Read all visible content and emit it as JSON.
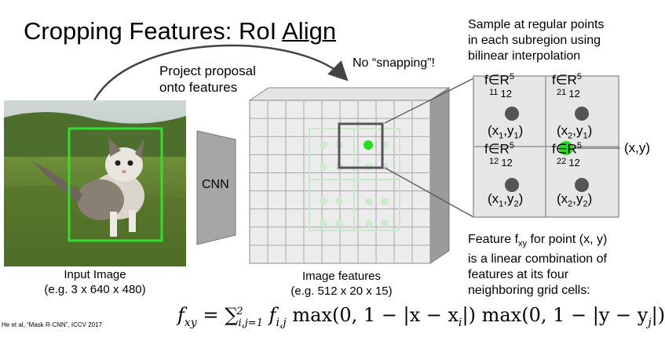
{
  "title": {
    "prefix": "Cropping Features: RoI ",
    "underlined": "Align"
  },
  "project_label": {
    "line1": "Project proposal",
    "line2": "onto features"
  },
  "no_snapping": "No “snapping”!",
  "cnn_label": "CNN",
  "input_image": {
    "line1": "Input Image",
    "line2": "(e.g. 3 x 640 x 480)"
  },
  "features_caption": {
    "line1": "Image features",
    "line2": "(e.g. 512 x 20 x 15)"
  },
  "sample_text": {
    "line1": "Sample at regular points",
    "line2": "in each subregion using",
    "line3": "bilinear interpolation"
  },
  "grid_cells": {
    "f11": {
      "f": "f",
      "sub": "11",
      "sub2": "12",
      "elem": "∈R",
      "sup": "5"
    },
    "f21": {
      "f": "f",
      "sub": "21",
      "sub2": "12",
      "elem": "∈R",
      "sup": "5"
    },
    "f12": {
      "f": "f",
      "sub": "12",
      "sub2": "12",
      "elem": "∈R",
      "sup": "5"
    },
    "f22": {
      "f": "f",
      "sub": "22",
      "sub2": "12",
      "elem": "∈R",
      "sup": "5"
    },
    "p11": {
      "open": "(x",
      "s1": "1",
      "mid": ",y",
      "s2": "1",
      "close": ")"
    },
    "p21": {
      "open": "(x",
      "s1": "2",
      "mid": ",y",
      "s2": "1",
      "close": ")"
    },
    "p12": {
      "open": "(x",
      "s1": "1",
      "mid": ",y",
      "s2": "2",
      "close": ")"
    },
    "p22": {
      "open": "(x",
      "s1": "2",
      "mid": ",y",
      "s2": "2",
      "close": ")"
    }
  },
  "xy_label": "(x,y)",
  "feature_text": {
    "l1a": "Feature f",
    "l1sub": "xy",
    "l1b": " for point (x, y)",
    "line2": "is a linear combination of",
    "line3": "features at its four",
    "line4": "neighboring grid cells:"
  },
  "formula": {
    "lhs": "f",
    "lhs_sub": "xy",
    "eq": " = ∑",
    "sum_sub": "i,j=1",
    "sum_sup": "2",
    "body": " f",
    "body_sub": "i,j",
    "rest": " max(0, 1 − |x − x",
    "x_sub": "i",
    "rest2": "|) max(0, 1 − |y − y",
    "y_sub": "j",
    "rest3": "|)"
  },
  "citation": "He et al, “Mask R-CNN”, ICCV 2017",
  "colors": {
    "green_point": "#22dd22",
    "proposal_box": "#33dd33",
    "dark_point": "#555555",
    "grid_fill": "#e6e6e6",
    "grid_line": "#999999"
  }
}
